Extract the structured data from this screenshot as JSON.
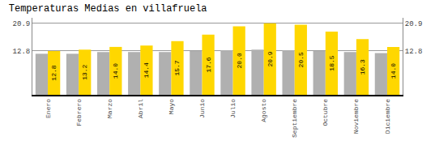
{
  "chart_data": {
    "type": "bar",
    "title": "Temperaturas Medias en villafruela",
    "categories": [
      "Enero",
      "Febrero",
      "Marzo",
      "Abril",
      "Mayo",
      "Junio",
      "Julio",
      "Agosto",
      "Septiembre",
      "Octubre",
      "Noviembre",
      "Diciembre"
    ],
    "series": [
      {
        "color": "#B0B0B0",
        "values": [
          12.0,
          12.0,
          12.5,
          12.5,
          12.5,
          12.8,
          13.0,
          13.2,
          13.0,
          12.8,
          12.5,
          12.2
        ]
      },
      {
        "color": "#FFD700",
        "values": [
          12.8,
          13.2,
          14.0,
          14.4,
          15.7,
          17.6,
          20.0,
          20.9,
          20.5,
          18.5,
          16.3,
          14.0
        ],
        "value_labels": [
          "12.8",
          "13.2",
          "14.0",
          "14.4",
          "15.7",
          "17.6",
          "20.0",
          "20.9",
          "20.5",
          "18.5",
          "16.3",
          "14.0"
        ],
        "data_labels": true
      }
    ],
    "ylim": [
      0,
      22.5
    ],
    "yticks": [
      12.8,
      20.9
    ],
    "y2lim": [
      0,
      22.5
    ],
    "y2ticks": [
      12.8,
      20.9
    ],
    "grid": true
  }
}
